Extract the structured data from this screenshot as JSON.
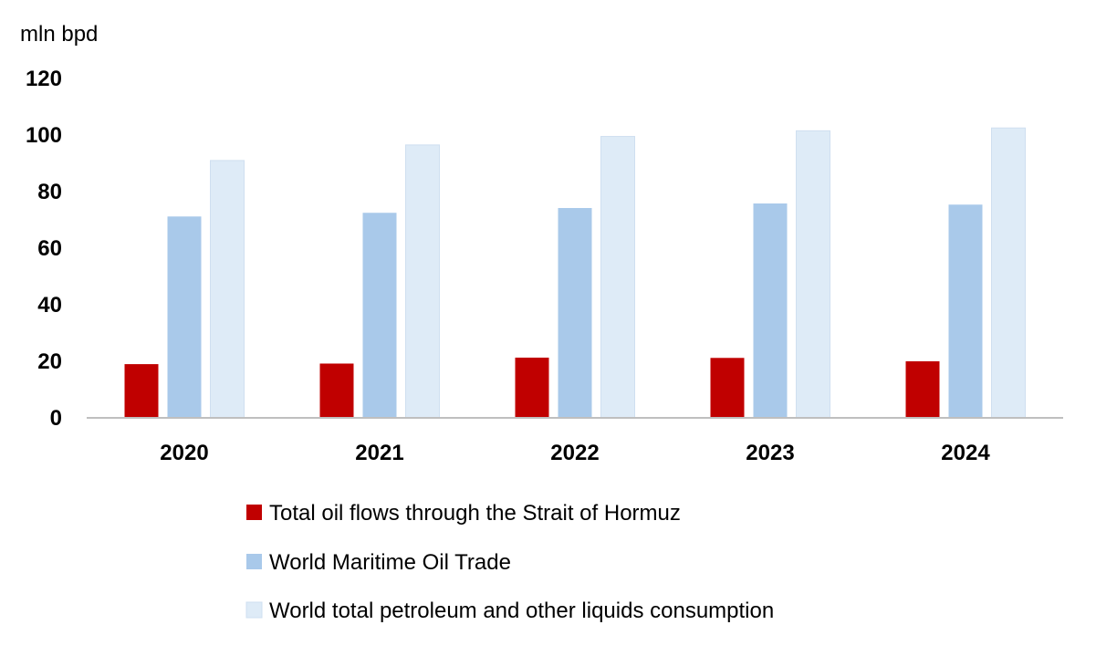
{
  "chart_data": {
    "type": "bar",
    "title": "",
    "xlabel": "",
    "ylabel": "mln bpd",
    "ylim": [
      0,
      120
    ],
    "yticks": [
      0,
      20,
      40,
      60,
      80,
      100,
      120
    ],
    "grid": false,
    "legend_position": "bottom",
    "categories": [
      "2020",
      "2021",
      "2022",
      "2023",
      "2024"
    ],
    "series": [
      {
        "name": "Total oil flows through the Strait of Hormuz",
        "color": "#c00000",
        "values": [
          19.0,
          19.2,
          21.3,
          21.2,
          20.0
        ]
      },
      {
        "name": "World Maritime Oil Trade",
        "color": "#a9c9ea",
        "values": [
          71.2,
          72.5,
          74.2,
          75.8,
          75.4
        ]
      },
      {
        "name": "World total petroleum and other liquids consumption",
        "color": "#deebf7",
        "values": [
          91.0,
          96.5,
          99.5,
          101.5,
          102.5
        ]
      }
    ]
  }
}
